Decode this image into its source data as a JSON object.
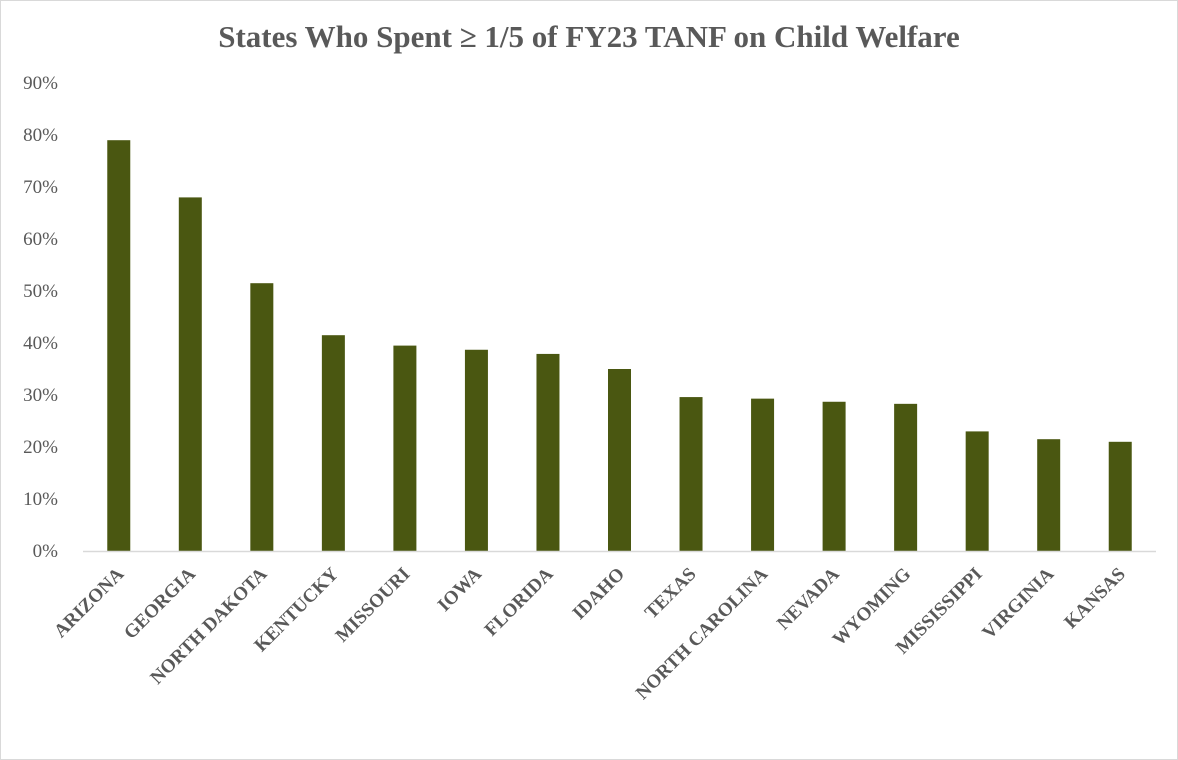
{
  "chart_data": {
    "type": "bar",
    "title": "States Who Spent ≥ 1/5 of FY23 TANF on Child Welfare",
    "xlabel": "",
    "ylabel": "",
    "ylim": [
      0,
      0.9
    ],
    "ytick_values": [
      0,
      0.1,
      0.2,
      0.3,
      0.4,
      0.5,
      0.6,
      0.7,
      0.8,
      0.9
    ],
    "ytick_labels": [
      "0%",
      "10%",
      "20%",
      "30%",
      "40%",
      "50%",
      "60%",
      "70%",
      "80%",
      "90%"
    ],
    "grid": false,
    "legend": "none",
    "bar_color": "#4a5711",
    "axis_color": "#d9d9d9",
    "text_color": "#595959",
    "categories": [
      "ARIZONA",
      "GEORGIA",
      "NORTH DAKOTA",
      "KENTUCKY",
      "MISSOURI",
      "IOWA",
      "FLORIDA",
      "IDAHO",
      "TEXAS",
      "NORTH CAROLINA",
      "NEVADA",
      "WYOMING",
      "MISSISSIPPI",
      "VIRGINIA",
      "KANSAS"
    ],
    "values": [
      0.79,
      0.68,
      0.515,
      0.415,
      0.395,
      0.387,
      0.379,
      0.35,
      0.296,
      0.293,
      0.287,
      0.283,
      0.23,
      0.215,
      0.21
    ]
  }
}
